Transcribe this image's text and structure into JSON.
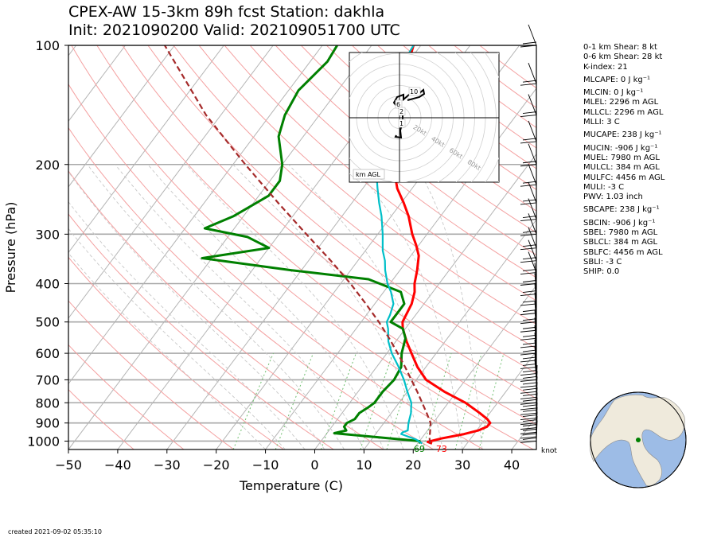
{
  "title": {
    "line1": "CPEX-AW 15-3km  89h fcst  Station: dakhla",
    "line2": "Init: 2021090200  Valid: 202109051700 UTC"
  },
  "indices": [
    "0-1 km Shear: 8 kt",
    "0-6 km Shear: 28 kt",
    "K-index: 21",
    "MLCAPE: 0 J kg⁻¹",
    "MLCIN: 0 J kg⁻¹",
    "MLEL: 2296 m AGL",
    "MLLCL: 2296 m AGL",
    "MLLI: 3 C",
    "MUCAPE: 238 J kg⁻¹",
    "MUCIN: -906 J kg⁻¹",
    "MUEL: 7980 m AGL",
    "MULCL: 384 m AGL",
    "MULFC: 4456 m AGL",
    "MULI: -3 C",
    "PWV: 1.03 inch",
    "SBCAPE: 238 J kg⁻¹",
    "SBCIN: -906 J kg⁻¹",
    "SBEL: 7980 m AGL",
    "SBLCL: 384 m AGL",
    "SBLFC: 4456 m AGL",
    "SBLI: -3 C",
    "SHIP: 0.0"
  ],
  "created": "created 2021-09-02 05:35:10",
  "hodograph": {
    "unit_label": "km AGL",
    "ring_labels": [
      "20kt",
      "40kt",
      "60kt",
      "80kt"
    ],
    "height_labels": [
      "10",
      "6",
      "2",
      "1"
    ]
  },
  "barb_unit": "knot",
  "surface_labels": {
    "dewpoint": "69",
    "temperature": "73"
  },
  "colors": {
    "temperature": "#ff0000",
    "dewpoint": "#008000",
    "wetbulb": "#00bfc8",
    "parcel": "#a52a2a",
    "dry_adiabat": "#f4a0a0",
    "moist_adiabat": "#c8c8c8",
    "mixing_ratio": "#6fbf6f"
  },
  "chart_data": {
    "type": "line",
    "title": "CPEX-AW 15-3km  89h fcst  Station: dakhla",
    "xlabel": "Temperature (C)",
    "ylabel": "Pressure (hPa)",
    "xlim": [
      -50,
      45
    ],
    "ylim": [
      1050,
      100
    ],
    "y_scale": "log",
    "x_ticks": [
      "−50",
      "−40",
      "−30",
      "−20",
      "−10",
      "0",
      "10",
      "20",
      "30",
      "40"
    ],
    "x_tick_values": [
      -50,
      -40,
      -30,
      -20,
      -10,
      0,
      10,
      20,
      30,
      40
    ],
    "y_ticks": [
      "100",
      "200",
      "300",
      "400",
      "500",
      "600",
      "700",
      "800",
      "900",
      "1000"
    ],
    "y_tick_values": [
      100,
      200,
      300,
      400,
      500,
      600,
      700,
      800,
      900,
      1000
    ],
    "grid": true,
    "series": [
      {
        "role": "temperature",
        "color": "#ff0000",
        "points": [
          [
            1014,
            22.9
          ],
          [
            1005,
            21.8
          ],
          [
            985,
            24
          ],
          [
            960,
            28
          ],
          [
            940,
            30.3
          ],
          [
            920,
            31.5
          ],
          [
            900,
            31.6
          ],
          [
            880,
            30.4
          ],
          [
            850,
            28
          ],
          [
            800,
            23.5
          ],
          [
            750,
            17.5
          ],
          [
            700,
            12
          ],
          [
            650,
            8.3
          ],
          [
            600,
            5
          ],
          [
            560,
            2.2
          ],
          [
            520,
            -0.5
          ],
          [
            500,
            -1.6
          ],
          [
            450,
            -2.5
          ],
          [
            420,
            -3.7
          ],
          [
            400,
            -5
          ],
          [
            370,
            -6.5
          ],
          [
            340,
            -8.4
          ],
          [
            320,
            -10.5
          ],
          [
            300,
            -13
          ],
          [
            270,
            -16.5
          ],
          [
            250,
            -19.5
          ],
          [
            230,
            -23
          ],
          [
            200,
            -27.5
          ],
          [
            180,
            -30.8
          ],
          [
            160,
            -34
          ],
          [
            140,
            -37
          ],
          [
            120,
            -38.5
          ],
          [
            110,
            -40
          ],
          [
            100,
            -41.5
          ]
        ]
      },
      {
        "role": "dewpoint",
        "color": "#008000",
        "points": [
          [
            1014,
            20.5
          ],
          [
            1000,
            20
          ],
          [
            985,
            14
          ],
          [
            960,
            3.5
          ],
          [
            955,
            1.5
          ],
          [
            940,
            3.5
          ],
          [
            920,
            2.5
          ],
          [
            900,
            2.5
          ],
          [
            880,
            3.5
          ],
          [
            850,
            3.5
          ],
          [
            820,
            4.5
          ],
          [
            800,
            5
          ],
          [
            750,
            5
          ],
          [
            700,
            5.5
          ],
          [
            650,
            5
          ],
          [
            600,
            3
          ],
          [
            550,
            1.5
          ],
          [
            520,
            -0.5
          ],
          [
            500,
            -4
          ],
          [
            470,
            -4
          ],
          [
            450,
            -4
          ],
          [
            420,
            -6.5
          ],
          [
            390,
            -15
          ],
          [
            370,
            -32
          ],
          [
            345,
            -52
          ],
          [
            325,
            -40
          ],
          [
            305,
            -46
          ],
          [
            290,
            -56
          ],
          [
            270,
            -52
          ],
          [
            240,
            -48
          ],
          [
            220,
            -48
          ],
          [
            200,
            -50
          ],
          [
            170,
            -55
          ],
          [
            150,
            -57
          ],
          [
            130,
            -58
          ],
          [
            110,
            -56.5
          ],
          [
            100,
            -57
          ]
        ]
      },
      {
        "role": "wetbulb",
        "color": "#00bfc8",
        "points": [
          [
            1014,
            20.9
          ],
          [
            990,
            19
          ],
          [
            960,
            15.2
          ],
          [
            950,
            15.2
          ],
          [
            940,
            16
          ],
          [
            900,
            15
          ],
          [
            850,
            14
          ],
          [
            800,
            12.5
          ],
          [
            750,
            10
          ],
          [
            700,
            7.5
          ],
          [
            650,
            4.5
          ],
          [
            600,
            1
          ],
          [
            560,
            -1.5
          ],
          [
            520,
            -3.5
          ],
          [
            500,
            -4.8
          ],
          [
            480,
            -5.2
          ],
          [
            450,
            -6.2
          ],
          [
            420,
            -8.5
          ],
          [
            400,
            -10.5
          ],
          [
            370,
            -13
          ],
          [
            350,
            -14.5
          ],
          [
            330,
            -16.5
          ],
          [
            300,
            -19
          ],
          [
            270,
            -22
          ],
          [
            250,
            -24.5
          ],
          [
            230,
            -27
          ],
          [
            200,
            -31
          ],
          [
            180,
            -34.5
          ],
          [
            160,
            -37.5
          ],
          [
            140,
            -39.5
          ],
          [
            120,
            -40.5
          ],
          [
            100,
            -41.5
          ]
        ]
      },
      {
        "role": "parcel",
        "color": "#a52a2a",
        "dashed": true,
        "points": [
          [
            1014,
            22.5
          ],
          [
            980,
            21.5
          ],
          [
            950,
            20.8
          ],
          [
            900,
            19.5
          ],
          [
            850,
            17.2
          ],
          [
            800,
            14.7
          ],
          [
            750,
            12
          ],
          [
            700,
            9
          ],
          [
            650,
            5.8
          ],
          [
            600,
            2.2
          ],
          [
            550,
            -1.8
          ],
          [
            500,
            -6.4
          ],
          [
            450,
            -11.8
          ],
          [
            400,
            -18
          ],
          [
            350,
            -25.5
          ],
          [
            300,
            -34.5
          ],
          [
            250,
            -45
          ],
          [
            200,
            -57.5
          ],
          [
            150,
            -73
          ],
          [
            100,
            -92
          ]
        ]
      }
    ],
    "wind_barb_pressures": [
      100,
      125,
      150,
      175,
      200,
      225,
      250,
      275,
      300,
      325,
      350,
      375,
      400,
      425,
      450,
      475,
      500,
      525,
      550,
      575,
      600,
      625,
      650,
      675,
      700,
      725,
      750,
      775,
      800,
      825,
      850,
      875,
      900,
      925,
      950,
      975,
      1000
    ]
  }
}
